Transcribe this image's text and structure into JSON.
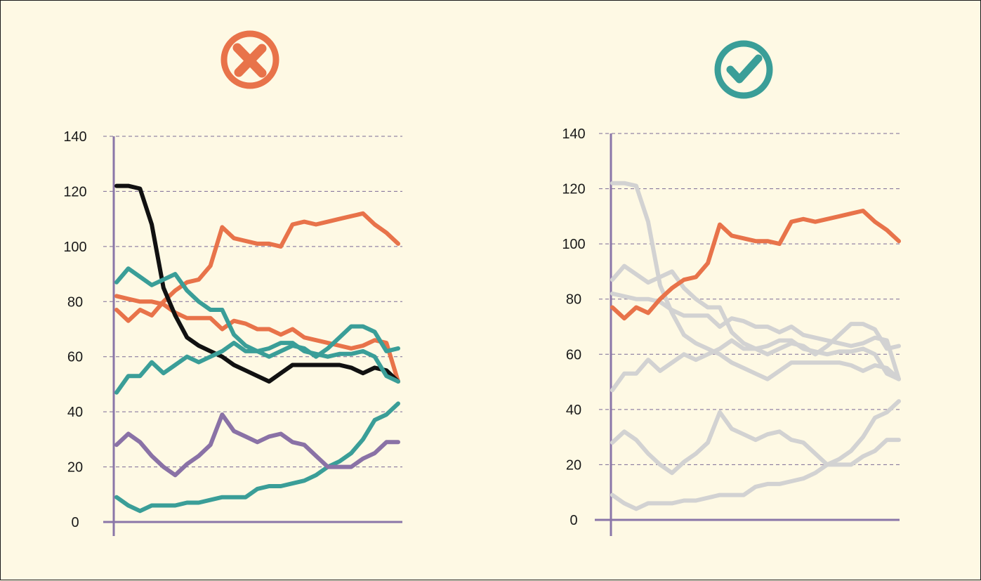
{
  "colors": {
    "background": "#fef9e4",
    "orange": "#e8734a",
    "teal": "#3a9e98",
    "black": "#111111",
    "purple": "#8a72a6",
    "muted_gray": "#d2d2d2",
    "axis": "#8a76a8"
  },
  "badges": [
    {
      "icon": "x-mark-icon",
      "meaning": "bad example",
      "color": "#e8734a"
    },
    {
      "icon": "check-mark-icon",
      "meaning": "good example",
      "color": "#3a9e98"
    }
  ],
  "chart_data": [
    {
      "type": "line",
      "title": "",
      "xlabel": "",
      "ylabel": "",
      "ylim": [
        0,
        140
      ],
      "yticks": [
        "0",
        "20",
        "40",
        "60",
        "80",
        "100",
        "120",
        "140"
      ],
      "grid": true,
      "x": [
        0,
        1,
        2,
        3,
        4,
        5,
        6,
        7,
        8,
        9,
        10,
        11,
        12,
        13,
        14,
        15,
        16,
        17,
        18,
        19,
        20,
        21,
        22,
        23,
        24
      ],
      "series": [
        {
          "color": "#e8734a",
          "emphasis": true,
          "values": [
            77,
            73,
            77,
            75,
            80,
            84,
            87,
            88,
            93,
            107,
            103,
            102,
            101,
            101,
            100,
            108,
            109,
            108,
            109,
            110,
            111,
            112,
            108,
            105,
            101
          ]
        },
        {
          "color": "#e8734a",
          "emphasis": true,
          "values": [
            82,
            81,
            80,
            80,
            79,
            76,
            74,
            74,
            74,
            70,
            73,
            72,
            70,
            70,
            68,
            70,
            67,
            66,
            65,
            64,
            63,
            64,
            66,
            65,
            51
          ]
        },
        {
          "color": "#111111",
          "emphasis": true,
          "values": [
            122,
            122,
            121,
            108,
            85,
            75,
            67,
            64,
            62,
            60,
            57,
            55,
            53,
            51,
            54,
            57,
            57,
            57,
            57,
            57,
            56,
            54,
            56,
            55,
            51
          ]
        },
        {
          "color": "#3a9e98",
          "emphasis": true,
          "values": [
            87,
            92,
            89,
            86,
            88,
            90,
            84,
            80,
            77,
            77,
            68,
            64,
            62,
            60,
            62,
            64,
            63,
            60,
            63,
            67,
            71,
            71,
            69,
            62,
            63
          ]
        },
        {
          "color": "#3a9e98",
          "emphasis": true,
          "values": [
            47,
            53,
            53,
            58,
            54,
            57,
            60,
            58,
            60,
            62,
            65,
            62,
            62,
            63,
            65,
            65,
            62,
            61,
            60,
            61,
            61,
            62,
            60,
            53,
            51
          ]
        },
        {
          "color": "#3a9e98",
          "emphasis": true,
          "values": [
            9,
            6,
            4,
            6,
            6,
            6,
            7,
            7,
            8,
            9,
            9,
            9,
            12,
            13,
            13,
            14,
            15,
            17,
            20,
            22,
            25,
            30,
            37,
            39,
            43
          ]
        },
        {
          "color": "#8a72a6",
          "emphasis": true,
          "values": [
            28,
            32,
            29,
            24,
            20,
            17,
            21,
            24,
            28,
            39,
            33,
            31,
            29,
            31,
            32,
            29,
            28,
            24,
            20,
            20,
            20,
            23,
            25,
            29,
            29
          ]
        }
      ]
    },
    {
      "type": "line",
      "title": "",
      "xlabel": "",
      "ylabel": "",
      "ylim": [
        0,
        140
      ],
      "yticks": [
        "0",
        "20",
        "40",
        "60",
        "80",
        "100",
        "120",
        "140"
      ],
      "grid": true,
      "x": [
        0,
        1,
        2,
        3,
        4,
        5,
        6,
        7,
        8,
        9,
        10,
        11,
        12,
        13,
        14,
        15,
        16,
        17,
        18,
        19,
        20,
        21,
        22,
        23,
        24
      ],
      "series": [
        {
          "color": "#d2d2d2",
          "emphasis": false,
          "values": [
            82,
            81,
            80,
            80,
            79,
            76,
            74,
            74,
            74,
            70,
            73,
            72,
            70,
            70,
            68,
            70,
            67,
            66,
            65,
            64,
            63,
            64,
            66,
            65,
            51
          ]
        },
        {
          "color": "#d2d2d2",
          "emphasis": false,
          "values": [
            122,
            122,
            121,
            108,
            85,
            75,
            67,
            64,
            62,
            60,
            57,
            55,
            53,
            51,
            54,
            57,
            57,
            57,
            57,
            57,
            56,
            54,
            56,
            55,
            51
          ]
        },
        {
          "color": "#d2d2d2",
          "emphasis": false,
          "values": [
            87,
            92,
            89,
            86,
            88,
            90,
            84,
            80,
            77,
            77,
            68,
            64,
            62,
            60,
            62,
            64,
            63,
            60,
            63,
            67,
            71,
            71,
            69,
            62,
            63
          ]
        },
        {
          "color": "#d2d2d2",
          "emphasis": false,
          "values": [
            47,
            53,
            53,
            58,
            54,
            57,
            60,
            58,
            60,
            62,
            65,
            62,
            62,
            63,
            65,
            65,
            62,
            61,
            60,
            61,
            61,
            62,
            60,
            53,
            51
          ]
        },
        {
          "color": "#d2d2d2",
          "emphasis": false,
          "values": [
            9,
            6,
            4,
            6,
            6,
            6,
            7,
            7,
            8,
            9,
            9,
            9,
            12,
            13,
            13,
            14,
            15,
            17,
            20,
            22,
            25,
            30,
            37,
            39,
            43
          ]
        },
        {
          "color": "#d2d2d2",
          "emphasis": false,
          "values": [
            28,
            32,
            29,
            24,
            20,
            17,
            21,
            24,
            28,
            39,
            33,
            31,
            29,
            31,
            32,
            29,
            28,
            24,
            20,
            20,
            20,
            23,
            25,
            29,
            29
          ]
        },
        {
          "color": "#e8734a",
          "emphasis": true,
          "values": [
            77,
            73,
            77,
            75,
            80,
            84,
            87,
            88,
            93,
            107,
            103,
            102,
            101,
            101,
            100,
            108,
            109,
            108,
            109,
            110,
            111,
            112,
            108,
            105,
            101
          ]
        }
      ]
    }
  ]
}
